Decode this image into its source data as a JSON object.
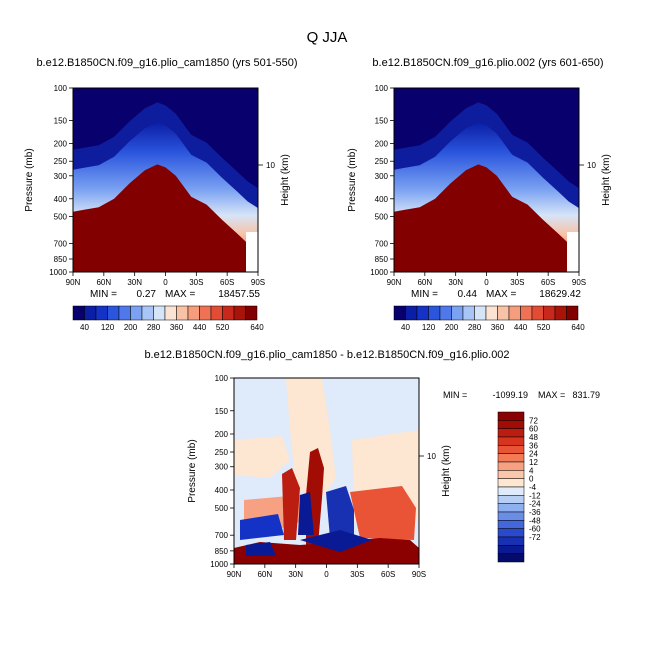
{
  "page_title": "Q JJA",
  "chart_data": [
    {
      "type": "heatmap",
      "title": "b.e12.B1850CN.f09_g16.plio_cam1850 (yrs 501-550)",
      "ylabel": "Pressure (mb)",
      "ylabel_right": "Height (km)",
      "right_tick": "10",
      "x_ticks": [
        "90N",
        "60N",
        "30N",
        "0",
        "30S",
        "60S",
        "90S"
      ],
      "y_ticks": [
        "100",
        "150",
        "200",
        "250",
        "300",
        "400",
        "500",
        "700",
        "850",
        "1000"
      ],
      "ylim": [
        1000,
        100
      ],
      "stats": {
        "min_label": "MIN =",
        "min": "0.27",
        "max_label": "MAX =",
        "max": "18457.55"
      },
      "profile_lat": [
        90,
        80,
        65,
        50,
        35,
        20,
        8,
        0,
        -10,
        -25,
        -40,
        -55,
        -70,
        -80,
        -90
      ],
      "profile_p": [
        470,
        460,
        445,
        400,
        330,
        280,
        260,
        270,
        300,
        390,
        430,
        520,
        620,
        700,
        760
      ]
    },
    {
      "type": "heatmap",
      "title": "b.e12.B1850CN.f09_g16.plio.002 (yrs 601-650)",
      "ylabel": "Pressure (mb)",
      "ylabel_right": "Height (km)",
      "right_tick": "10",
      "x_ticks": [
        "90N",
        "60N",
        "30N",
        "0",
        "30S",
        "60S",
        "90S"
      ],
      "y_ticks": [
        "100",
        "150",
        "200",
        "250",
        "300",
        "400",
        "500",
        "700",
        "850",
        "1000"
      ],
      "ylim": [
        1000,
        100
      ],
      "stats": {
        "min_label": "MIN =",
        "min": "0.44",
        "max_label": "MAX =",
        "max": "18629.42"
      },
      "profile_lat": [
        90,
        80,
        65,
        50,
        35,
        20,
        8,
        0,
        -10,
        -25,
        -40,
        -55,
        -70,
        -80,
        -90
      ],
      "profile_p": [
        470,
        460,
        445,
        400,
        330,
        280,
        260,
        270,
        300,
        390,
        430,
        520,
        620,
        700,
        760
      ]
    },
    {
      "type": "heatmap",
      "title": "b.e12.B1850CN.f09_g16.plio_cam1850 - b.e12.B1850CN.f09_g16.plio.002",
      "ylabel": "Pressure (mb)",
      "ylabel_right": "Height (km)",
      "right_tick": "10",
      "x_ticks": [
        "90N",
        "60N",
        "30N",
        "0",
        "30S",
        "60S",
        "90S"
      ],
      "y_ticks": [
        "100",
        "150",
        "200",
        "250",
        "300",
        "400",
        "500",
        "700",
        "850",
        "1000"
      ],
      "ylim": [
        1000,
        100
      ],
      "stats": {
        "min_label": "MIN =",
        "min": "-1099.19",
        "max_label": "MAX =",
        "max": "831.79"
      }
    }
  ],
  "colorbar_abs": {
    "labels": [
      "40",
      "120",
      "200",
      "280",
      "360",
      "440",
      "520",
      "640"
    ],
    "colors": [
      "#08006d",
      "#0b1ea6",
      "#1433c6",
      "#2a55dd",
      "#4f79ea",
      "#7ba2f2",
      "#a8c5f6",
      "#d6e4f8",
      "#fbe3d3",
      "#f8c2a6",
      "#f59d7c",
      "#ef7255",
      "#e24c34",
      "#c8291c",
      "#a81409",
      "#830000"
    ]
  },
  "colorbar_diff": {
    "labels": [
      "72",
      "60",
      "48",
      "36",
      "24",
      "12",
      "4",
      "0",
      "-4",
      "-12",
      "-24",
      "-36",
      "-48",
      "-60",
      "-72"
    ],
    "colors": [
      "#8b0000",
      "#a10d05",
      "#bb1d10",
      "#d6341f",
      "#e95436",
      "#f47a55",
      "#f8a182",
      "#fbc6a9",
      "#fde6d2",
      "#dfeafb",
      "#b7cef5",
      "#8fb0ef",
      "#6a8de6",
      "#4468dc",
      "#2a49cc",
      "#1830b2",
      "#0a1a94",
      "#050a6d"
    ]
  }
}
